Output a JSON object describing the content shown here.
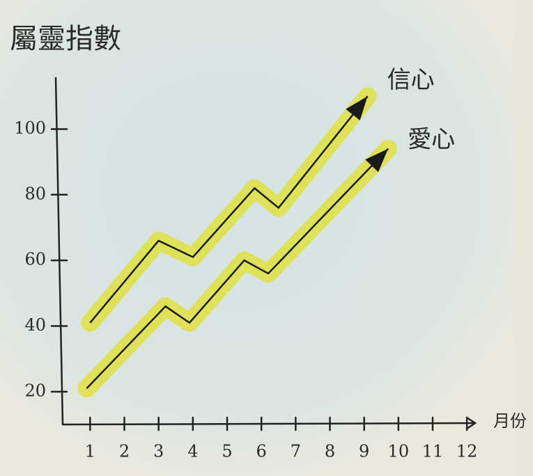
{
  "chart_data": {
    "type": "line",
    "title": "屬靈指數",
    "x_label": "月份",
    "xlim": [
      0.2,
      12.2
    ],
    "xticks": [
      1,
      2,
      3,
      4,
      5,
      6,
      7,
      8,
      9,
      10,
      11,
      12
    ],
    "ylim": [
      10,
      116
    ],
    "yticks": [
      20,
      40,
      60,
      80,
      100
    ],
    "highlight_color": "#dfe23f",
    "series": [
      {
        "name": "信心",
        "color": "#1a1a1a",
        "x": [
          1,
          3,
          4,
          5.8,
          6.5,
          9.1
        ],
        "values": [
          41,
          66,
          61,
          82,
          76,
          110
        ]
      },
      {
        "name": "愛心",
        "color": "#1a1a1a",
        "x": [
          0.9,
          3.2,
          3.9,
          5.5,
          6.2,
          9.7
        ],
        "values": [
          21,
          46,
          41,
          60,
          56,
          94
        ]
      }
    ]
  }
}
